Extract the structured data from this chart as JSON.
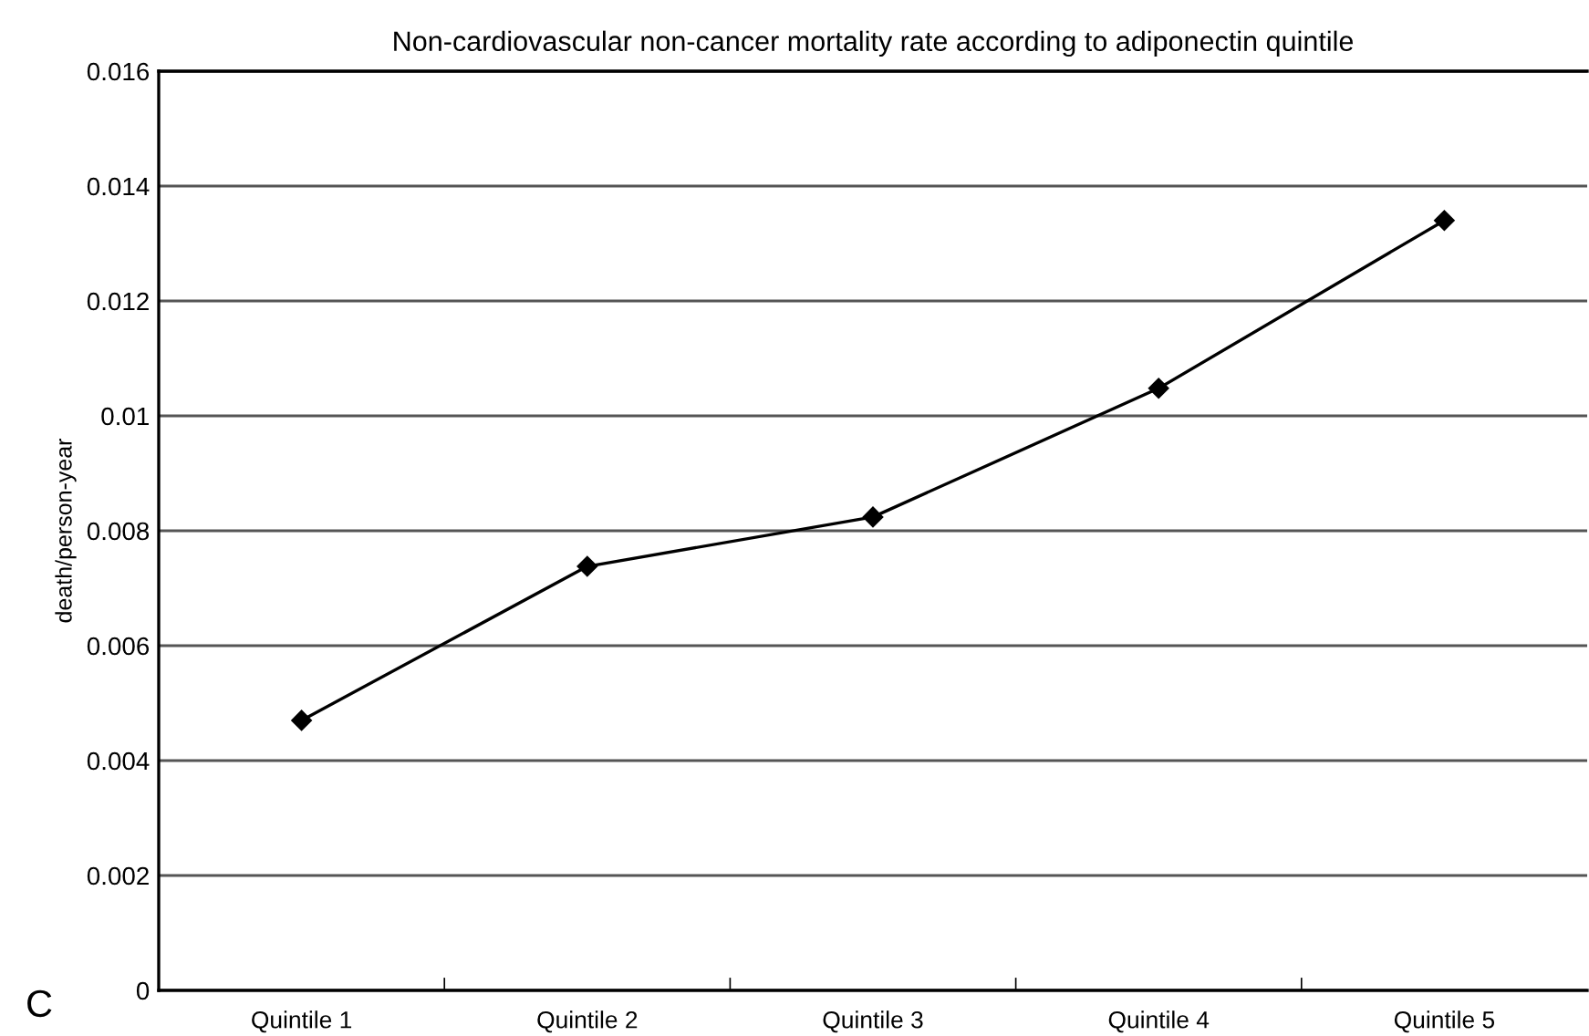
{
  "chart_data": {
    "type": "line",
    "title": "Non-cardiovascular non-cancer mortality rate according to adiponectin quintile",
    "ylabel": "death/person-year",
    "categories": [
      "Quintile 1",
      "Quintile 2",
      "Quintile 3",
      "Quintile 4",
      "Quintile 5"
    ],
    "series": [
      {
        "color": "#000000",
        "values": [
          0.0047,
          0.00738,
          0.00824,
          0.01048,
          0.0134
        ]
      }
    ],
    "ylim": [
      0,
      0.016
    ],
    "yticks": [
      0,
      {
        "value": 0.002,
        "label": "0.002"
      },
      {
        "value": 0.004,
        "label": "0.004"
      },
      {
        "value": 0.006,
        "label": "0.006"
      },
      {
        "value": 0.008,
        "label": "0.008"
      },
      {
        "value": 0.01,
        "label": "0.01"
      },
      {
        "value": 0.012,
        "label": "0.012"
      },
      {
        "value": 0.014,
        "label": "0.014"
      },
      {
        "value": 0.016,
        "label": "0.016"
      }
    ],
    "grid": "y",
    "marker": "diamond",
    "line_style": "solid",
    "annotations": [
      "C"
    ]
  }
}
